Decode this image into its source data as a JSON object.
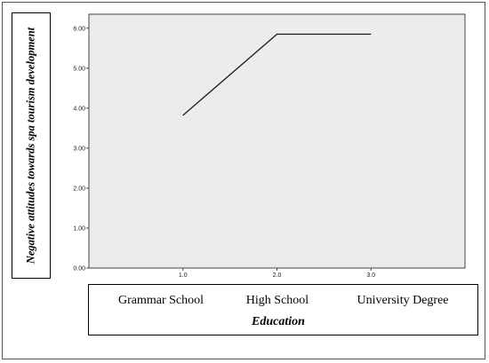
{
  "chart_data": {
    "type": "line",
    "x": [
      1.0,
      2.0,
      3.0
    ],
    "x_tick_labels": [
      "1.0",
      "2.0",
      "3.0"
    ],
    "y_tick_labels": [
      "0.00",
      "1.00",
      "2.00",
      "3.00",
      "4.00",
      "5.00",
      "6.00"
    ],
    "y_ticks": [
      0,
      1,
      2,
      3,
      4,
      5,
      6
    ],
    "series": [
      {
        "values": [
          3.82,
          5.85,
          5.85
        ],
        "color": "#1a1a1a"
      }
    ],
    "xlim": [
      0.0,
      4.0
    ],
    "ylim": [
      0,
      6.35
    ],
    "ylabel": "Negative attitudes towards spa tourism development",
    "xlabel": "Education",
    "category_labels": [
      "Grammar School",
      "High School",
      "University Degree"
    ],
    "plot_background": "#ececec",
    "grid": false
  }
}
